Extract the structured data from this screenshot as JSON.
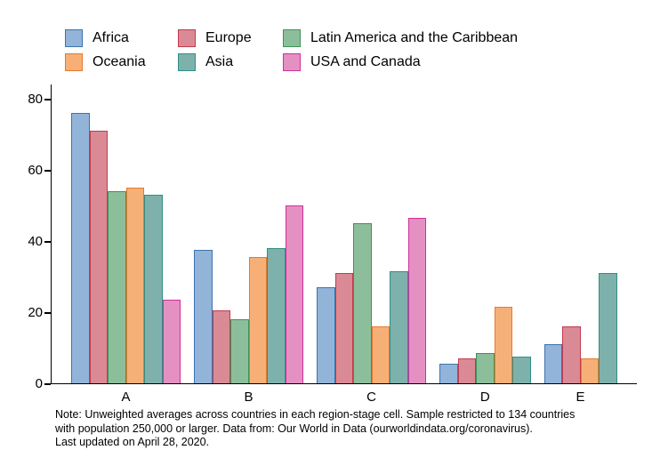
{
  "legend": {
    "items": [
      {
        "label": "Africa",
        "fill": "#92B4D9",
        "stroke": "#3D73AC"
      },
      {
        "label": "Oceania",
        "fill": "#F6B077",
        "stroke": "#E9782C"
      },
      {
        "label": "Europe",
        "fill": "#DA8A94",
        "stroke": "#C13B4D"
      },
      {
        "label": "Asia",
        "fill": "#7FB1AC",
        "stroke": "#2F8F85"
      },
      {
        "label": "Latin America and the Caribbean",
        "fill": "#8DBE9B",
        "stroke": "#3F9156"
      },
      {
        "label": "USA and Canada",
        "fill": "#E490C3",
        "stroke": "#D02F9B"
      }
    ]
  },
  "chart_data": {
    "type": "bar",
    "categories": [
      "A",
      "B",
      "C",
      "D",
      "E"
    ],
    "series": [
      {
        "name": "Africa",
        "fill": "#92B4D9",
        "stroke": "#3D73AC",
        "values": [
          76,
          37.5,
          27,
          5.5,
          11
        ]
      },
      {
        "name": "Europe",
        "fill": "#DA8A94",
        "stroke": "#C13B4D",
        "values": [
          71,
          20.5,
          31,
          7,
          16
        ]
      },
      {
        "name": "Latin America and the Caribbean",
        "fill": "#8DBE9B",
        "stroke": "#3F9156",
        "values": [
          54,
          18,
          45,
          8.5,
          null
        ]
      },
      {
        "name": "Oceania",
        "fill": "#F6B077",
        "stroke": "#E9782C",
        "values": [
          55,
          35.5,
          16,
          21.5,
          7
        ]
      },
      {
        "name": "Asia",
        "fill": "#7FB1AC",
        "stroke": "#2F8F85",
        "values": [
          53,
          38,
          31.5,
          7.5,
          31
        ]
      },
      {
        "name": "USA and Canada",
        "fill": "#E490C3",
        "stroke": "#D02F9B",
        "values": [
          23.5,
          50,
          46.5,
          null,
          null
        ]
      }
    ],
    "title": "",
    "xlabel": "",
    "ylabel": "",
    "ylim": [
      0,
      80
    ],
    "yticks": [
      0,
      20,
      40,
      60,
      80
    ],
    "grid": false,
    "legend_position": "top"
  },
  "note": {
    "lines": [
      "Note: Unweighted averages across countries in each region-stage cell. Sample restricted to 134 countries",
      "with population 250,000 or larger. Data from: Our World in Data (ourworldindata.org/coronavirus).",
      "Last updated on April 28, 2020."
    ]
  }
}
